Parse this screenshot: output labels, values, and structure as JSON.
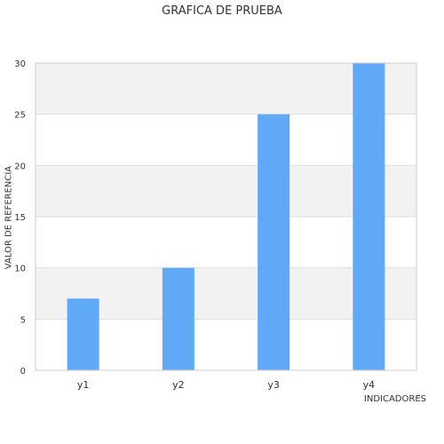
{
  "chart_data": {
    "type": "bar",
    "title": "GRAFICA DE PRUEBA",
    "xlabel": "INDICADORES",
    "ylabel": "VALOR DE REFERENCIA",
    "categories": [
      "y1",
      "y2",
      "y3",
      "y4"
    ],
    "values": [
      7,
      10,
      25,
      30
    ],
    "ylim": [
      0,
      30
    ],
    "yticks": [
      0,
      5,
      10,
      15,
      20,
      25,
      30
    ],
    "grid": true,
    "legend": "none",
    "colors": {
      "bar": "#60a9f6",
      "band": "#f2f2f2",
      "gridline": "#dddddd",
      "axis": "#cccccc",
      "text": "#333333"
    }
  }
}
